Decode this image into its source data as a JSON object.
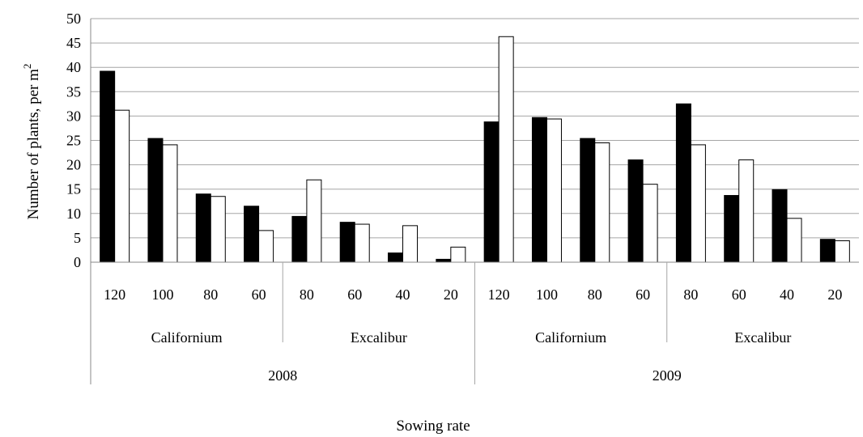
{
  "chart_data": {
    "type": "bar",
    "ylabel": "Number of plants, per m",
    "ylabel_superscript": "2",
    "xlabel": "Sowing rate",
    "ylim": [
      0,
      50
    ],
    "y_ticks": [
      0,
      5,
      10,
      15,
      20,
      25,
      30,
      35,
      40,
      45,
      50
    ],
    "grid": true,
    "categories": [
      "120",
      "100",
      "80",
      "60",
      "80",
      "60",
      "40",
      "20",
      "120",
      "100",
      "80",
      "60",
      "80",
      "60",
      "40",
      "20"
    ],
    "groups": [
      {
        "label": "Californium",
        "start": 0,
        "count": 4
      },
      {
        "label": "Excalibur",
        "start": 4,
        "count": 4
      },
      {
        "label": "Californium",
        "start": 8,
        "count": 4
      },
      {
        "label": "Excalibur",
        "start": 12,
        "count": 4
      }
    ],
    "years": [
      {
        "label": "2008",
        "start": 0,
        "count": 8
      },
      {
        "label": "2009",
        "start": 8,
        "count": 8
      }
    ],
    "series": [
      {
        "color": "#000000",
        "values": [
          39.2,
          25.4,
          14.0,
          11.5,
          9.4,
          8.2,
          1.9,
          0.6,
          28.8,
          29.7,
          25.4,
          21.0,
          32.5,
          13.7,
          14.9,
          4.7
        ]
      },
      {
        "color": "#ffffff",
        "values": [
          31.2,
          24.1,
          13.5,
          6.5,
          16.9,
          7.8,
          7.5,
          3.1,
          46.3,
          29.4,
          24.5,
          16.0,
          24.1,
          21.0,
          9.0,
          4.4
        ]
      }
    ]
  }
}
